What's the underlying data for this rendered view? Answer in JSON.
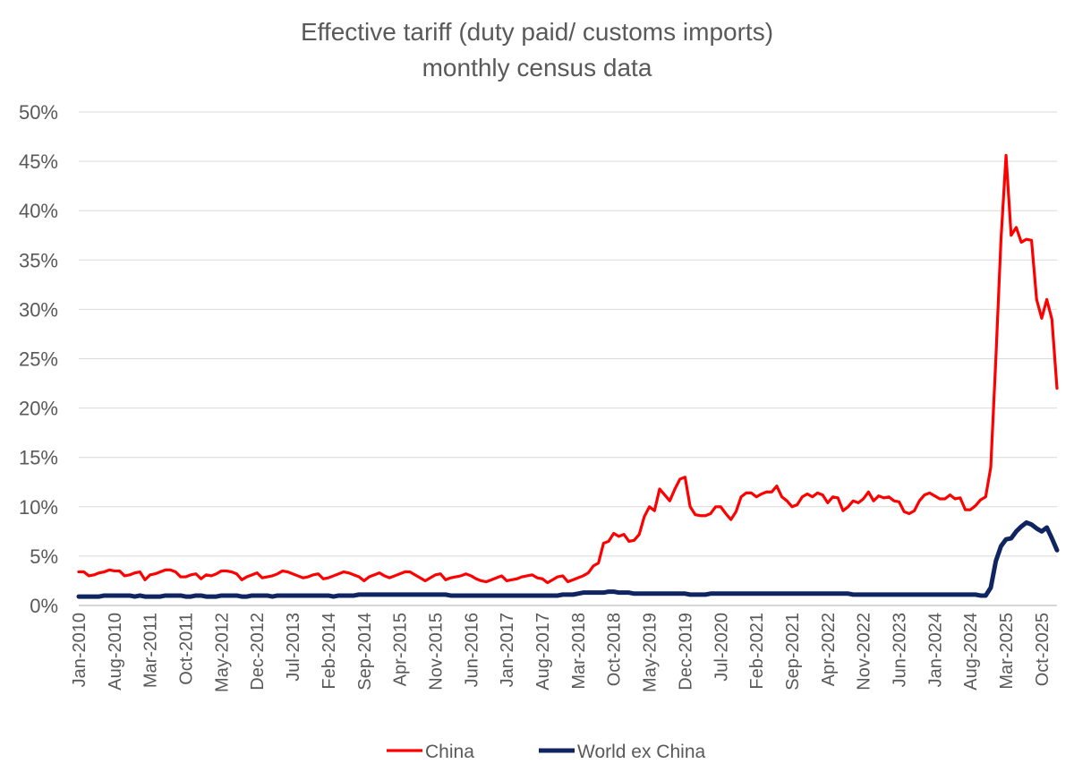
{
  "chart_data": {
    "type": "line",
    "title": "Effective tariff (duty paid/ customs imports)",
    "subtitle": "monthly census data",
    "xlabel": "",
    "ylabel": "",
    "ylim": [
      0,
      0.5
    ],
    "y_tick_labels": [
      "0%",
      "5%",
      "10%",
      "15%",
      "20%",
      "25%",
      "30%",
      "35%",
      "40%",
      "45%",
      "50%"
    ],
    "x_tick_labels": [
      "Jan-2010",
      "Aug-2010",
      "Mar-2011",
      "Oct-2011",
      "May-2012",
      "Dec-2012",
      "Jul-2013",
      "Feb-2014",
      "Sep-2014",
      "Apr-2015",
      "Nov-2015",
      "Jun-2016",
      "Jan-2017",
      "Aug-2017",
      "Mar-2018",
      "Oct-2018",
      "May-2019",
      "Dec-2019",
      "Jul-2020",
      "Feb-2021",
      "Sep-2021",
      "Apr-2022",
      "Nov-2022",
      "Jun-2023",
      "Jan-2024",
      "Aug-2024",
      "Mar-2025",
      "Oct-2025"
    ],
    "x_start": "Jan-2010",
    "x_end": "Jan-2026",
    "grid": true,
    "legend_position": "bottom",
    "series": [
      {
        "name": "China",
        "color": "#ff0000",
        "values": [
          0.034,
          0.034,
          0.03,
          0.031,
          0.033,
          0.034,
          0.036,
          0.035,
          0.035,
          0.03,
          0.031,
          0.033,
          0.034,
          0.026,
          0.031,
          0.032,
          0.034,
          0.036,
          0.036,
          0.034,
          0.029,
          0.029,
          0.031,
          0.032,
          0.027,
          0.031,
          0.03,
          0.032,
          0.035,
          0.035,
          0.034,
          0.032,
          0.026,
          0.029,
          0.031,
          0.033,
          0.028,
          0.029,
          0.03,
          0.032,
          0.035,
          0.034,
          0.032,
          0.03,
          0.028,
          0.029,
          0.031,
          0.032,
          0.027,
          0.028,
          0.03,
          0.032,
          0.034,
          0.033,
          0.031,
          0.029,
          0.025,
          0.029,
          0.031,
          0.033,
          0.03,
          0.028,
          0.03,
          0.032,
          0.034,
          0.034,
          0.031,
          0.028,
          0.025,
          0.028,
          0.031,
          0.032,
          0.026,
          0.028,
          0.029,
          0.03,
          0.032,
          0.03,
          0.027,
          0.025,
          0.024,
          0.026,
          0.028,
          0.03,
          0.025,
          0.026,
          0.027,
          0.029,
          0.03,
          0.031,
          0.028,
          0.027,
          0.023,
          0.026,
          0.029,
          0.03,
          0.024,
          0.026,
          0.028,
          0.03,
          0.033,
          0.04,
          0.043,
          0.063,
          0.065,
          0.073,
          0.07,
          0.072,
          0.065,
          0.066,
          0.072,
          0.09,
          0.1,
          0.096,
          0.118,
          0.112,
          0.106,
          0.118,
          0.128,
          0.13,
          0.1,
          0.092,
          0.091,
          0.091,
          0.093,
          0.1,
          0.1,
          0.093,
          0.087,
          0.095,
          0.11,
          0.114,
          0.114,
          0.11,
          0.113,
          0.115,
          0.115,
          0.121,
          0.11,
          0.106,
          0.1,
          0.102,
          0.11,
          0.113,
          0.11,
          0.114,
          0.112,
          0.104,
          0.11,
          0.109,
          0.096,
          0.1,
          0.106,
          0.104,
          0.108,
          0.115,
          0.106,
          0.111,
          0.109,
          0.11,
          0.106,
          0.105,
          0.095,
          0.093,
          0.096,
          0.106,
          0.112,
          0.114,
          0.111,
          0.108,
          0.108,
          0.112,
          0.108,
          0.109,
          0.097,
          0.097,
          0.101,
          0.107,
          0.11,
          0.14,
          0.25,
          0.37,
          0.456,
          0.375,
          0.383,
          0.368,
          0.371,
          0.37,
          0.31,
          0.291,
          0.31,
          0.29,
          0.22
        ]
      },
      {
        "name": "World ex China",
        "color": "#0f2460",
        "values": [
          0.009,
          0.009,
          0.009,
          0.009,
          0.009,
          0.01,
          0.01,
          0.01,
          0.01,
          0.01,
          0.01,
          0.009,
          0.01,
          0.009,
          0.009,
          0.009,
          0.009,
          0.01,
          0.01,
          0.01,
          0.01,
          0.009,
          0.009,
          0.01,
          0.01,
          0.009,
          0.009,
          0.009,
          0.01,
          0.01,
          0.01,
          0.01,
          0.009,
          0.009,
          0.01,
          0.01,
          0.01,
          0.01,
          0.009,
          0.01,
          0.01,
          0.01,
          0.01,
          0.01,
          0.01,
          0.01,
          0.01,
          0.01,
          0.01,
          0.01,
          0.009,
          0.01,
          0.01,
          0.01,
          0.01,
          0.011,
          0.011,
          0.011,
          0.011,
          0.011,
          0.011,
          0.011,
          0.011,
          0.011,
          0.011,
          0.011,
          0.011,
          0.011,
          0.011,
          0.011,
          0.011,
          0.011,
          0.011,
          0.01,
          0.01,
          0.01,
          0.01,
          0.01,
          0.01,
          0.01,
          0.01,
          0.01,
          0.01,
          0.01,
          0.01,
          0.01,
          0.01,
          0.01,
          0.01,
          0.01,
          0.01,
          0.01,
          0.01,
          0.01,
          0.01,
          0.011,
          0.011,
          0.011,
          0.012,
          0.013,
          0.013,
          0.013,
          0.013,
          0.013,
          0.014,
          0.014,
          0.013,
          0.013,
          0.013,
          0.012,
          0.012,
          0.012,
          0.012,
          0.012,
          0.012,
          0.012,
          0.012,
          0.012,
          0.012,
          0.012,
          0.011,
          0.011,
          0.011,
          0.011,
          0.012,
          0.012,
          0.012,
          0.012,
          0.012,
          0.012,
          0.012,
          0.012,
          0.012,
          0.012,
          0.012,
          0.012,
          0.012,
          0.012,
          0.012,
          0.012,
          0.012,
          0.012,
          0.012,
          0.012,
          0.012,
          0.012,
          0.012,
          0.012,
          0.012,
          0.012,
          0.012,
          0.012,
          0.011,
          0.011,
          0.011,
          0.011,
          0.011,
          0.011,
          0.011,
          0.011,
          0.011,
          0.011,
          0.011,
          0.011,
          0.011,
          0.011,
          0.011,
          0.011,
          0.011,
          0.011,
          0.011,
          0.011,
          0.011,
          0.011,
          0.011,
          0.011,
          0.011,
          0.01,
          0.01,
          0.018,
          0.045,
          0.06,
          0.067,
          0.068,
          0.075,
          0.08,
          0.084,
          0.082,
          0.078,
          0.075,
          0.079,
          0.068,
          0.056
        ]
      }
    ]
  }
}
